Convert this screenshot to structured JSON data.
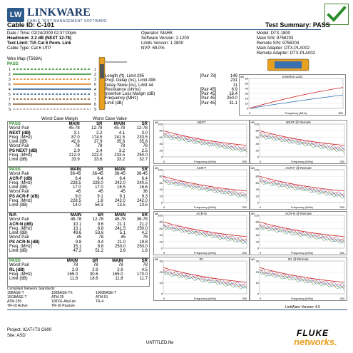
{
  "header": {
    "logo_icon": "LW",
    "logo_title": "LINKWARE",
    "logo_subtitle": "CABLE TEST MANAGEMENT SOFTWARE",
    "status_icon": "check-icon"
  },
  "title_bar": {
    "cable_id": "Cable ID: C-101",
    "summary": "Test Summary: PASS"
  },
  "meta": {
    "left": [
      "Date / Time: 02/24/2009 02:37:00pm",
      "Headroom: 2.2 dB (NEXT 12-78)",
      "Test Limit: TIA Cat 6 Perm. Link",
      "Cable Type: Cat 6 UTP"
    ],
    "mid": [
      "Operator: MARK",
      "Software Version: 2.1200",
      "Limits Version: 1.2800",
      "NVP: 69.0%"
    ],
    "right": [
      "Model: DTX-1800",
      "Main S/N: 9758203",
      "Remote S/N: 9758204",
      "Main Adapter: DTX-PLA002",
      "Remote Adapter: DTX-PLA002"
    ]
  },
  "wiremap": {
    "title": "Wire Map (T568A)",
    "status": "PASS",
    "pins": [
      "1",
      "2",
      "3",
      "6",
      "4",
      "5",
      "7",
      "8",
      "S"
    ]
  },
  "summary_rows": [
    {
      "label": "Length (ft), Limit 295",
      "pair": "[Pair 78]",
      "value": "149"
    },
    {
      "label": "Prop. Delay (ns), Limit 498",
      "pair": "",
      "value": "231"
    },
    {
      "label": "Delay Skew (ns), Limit 44",
      "pair": "",
      "value": "11"
    },
    {
      "label": "Resistance (ohms)",
      "pair": "[Pair 45]",
      "value": "6.9"
    },
    {
      "label": "",
      "pair": "",
      "value": ""
    },
    {
      "label": "Insertion Loss Margin (dB)",
      "pair": "[Pair 45]",
      "value": "16.4"
    },
    {
      "label": "Frequency (MHz)",
      "pair": "[Pair 45]",
      "value": "250.0"
    },
    {
      "label": "Limit (dB)",
      "pair": "[Pair 45]",
      "value": "31.1"
    }
  ],
  "margin_header": {
    "worst_margin": "Worst Case Margin",
    "worst_value": "Worst Case Value"
  },
  "sections": [
    {
      "status": "PASS",
      "rows": [
        [
          "",
          "MAIN",
          "SR",
          "MAIN",
          "SR"
        ],
        [
          "Worst Pair",
          "45-78",
          "12-78",
          "45-78",
          "12-78"
        ],
        [
          "NEXT (dB)",
          "3.1",
          "2.2",
          "4.1",
          "3.0"
        ],
        [
          "Freq. (MHz)",
          "87.0",
          "174.5",
          "241.5",
          "233.5"
        ],
        [
          "Limit (dB)",
          "42.8",
          "37.9",
          "35.6",
          "35.8"
        ],
        [
          "Worst Pair",
          "78",
          "78",
          "78",
          "78"
        ],
        [
          "PS NEXT (dB)",
          "2.9",
          "2.4",
          "3.2",
          "2.5"
        ],
        [
          "Freq. (MHz)",
          "212.0",
          "222.0",
          "233.5",
          "250.0"
        ],
        [
          "Limit (dB)",
          "33.9",
          "33.6",
          "33.2",
          "32.7"
        ]
      ]
    },
    {
      "status": "PASS",
      "rows": [
        [
          "",
          "MAIN",
          "SR",
          "MAIN",
          "SR"
        ],
        [
          "Worst Pair",
          "36-45",
          "36-45",
          "36-45",
          "36-45"
        ],
        [
          "ACR-F (dB)",
          "6.4",
          "6.4",
          "6.4",
          "6.4"
        ],
        [
          "Freq. (MHz)",
          "228.5",
          "228.0",
          "242.0",
          "240.5"
        ],
        [
          "Limit (dB)",
          "17.0",
          "17.0",
          "16.5",
          "16.6"
        ],
        [
          "Worst Pair",
          "45",
          "45",
          "45",
          "36"
        ],
        [
          "PS ACR-F (dB)",
          "9.0",
          "9.1",
          "9.1",
          "9.3"
        ],
        [
          "Freq. (MHz)",
          "228.5",
          "1.8",
          "242.0",
          "242.0"
        ],
        [
          "Limit (dB)",
          "14.0",
          "56.3",
          "13.5",
          "13.5"
        ]
      ]
    },
    {
      "status": "N/A",
      "rows": [
        [
          "",
          "MAIN",
          "SR",
          "MAIN",
          "SR"
        ],
        [
          "Worst Pair",
          "45-78",
          "12-78",
          "45-78",
          "36-78"
        ],
        [
          "ACR-N (dB)",
          "10.1",
          "9.6",
          "21.1",
          "21.2"
        ],
        [
          "Freq. (MHz)",
          "13.1",
          "8.8",
          "241.5",
          "250.0"
        ],
        [
          "Limit (dB)",
          "49.6",
          "53.6",
          "5.1",
          "4.2"
        ],
        [
          "Worst Pair",
          "45",
          "78",
          "45",
          "78"
        ],
        [
          "PS ACR-N (dB)",
          "9.8",
          "9.4",
          "21.0",
          "19.8"
        ],
        [
          "Freq. (MHz)",
          "15.1",
          "8.8",
          "250.0",
          "250.0"
        ],
        [
          "Limit (dB)",
          "47.2",
          "51.2",
          "2.6",
          "1.6"
        ]
      ]
    },
    {
      "status": "PASS",
      "rows": [
        [
          "",
          "MAIN",
          "SR",
          "MAIN",
          "SR"
        ],
        [
          "Worst Pair",
          "78",
          "78",
          "78",
          "78"
        ],
        [
          "RL (dB)",
          "2.9",
          "2.9",
          "2.9",
          "4.5"
        ],
        [
          "Freq. (MHz)",
          "165.0",
          "30.6",
          "165.0",
          "170.0"
        ],
        [
          "Limit (dB)",
          "11.8",
          "18.6",
          "11.8",
          "11.7"
        ]
      ]
    }
  ],
  "standards": {
    "title": "Compliant Network Standards:",
    "items": [
      "10BASE-T",
      "100BASE-TX",
      "1000BASE-T",
      "10GBASE-T",
      "ATM-25",
      "ATM-51",
      "ATM-155",
      "100VG-AnyLan",
      "TR-4",
      "TR-16 Active",
      "TR-16 Passive"
    ]
  },
  "graphs": [
    {
      "title": "Insertion Loss",
      "ylabels": [
        "60",
        "50",
        "40",
        "30",
        "20",
        "10",
        "0"
      ],
      "x": "Frequency (MHz)",
      "xmax": "250"
    },
    {
      "title": "NEXT",
      "ylabels": [
        "100",
        "80",
        "60",
        "40",
        "20",
        "0"
      ],
      "x": "Frequency (MHz)",
      "xmax": "250"
    },
    {
      "title": "NEXT @ Remote",
      "ylabels": [
        "100",
        "80",
        "60",
        "40",
        "20",
        "0"
      ],
      "x": "Frequency (MHz)",
      "xmax": "250"
    },
    {
      "title": "ACR-F",
      "ylabels": [
        "100",
        "80",
        "60",
        "40",
        "20",
        "0"
      ],
      "x": "Frequency (MHz)",
      "xmax": "250"
    },
    {
      "title": "ACR-F @ Remote",
      "ylabels": [
        "100",
        "80",
        "60",
        "40",
        "20",
        "0"
      ],
      "x": "Frequency (MHz)",
      "xmax": "250"
    },
    {
      "title": "ACR-N",
      "ylabels": [
        "100",
        "80",
        "60",
        "40",
        "20",
        "0"
      ],
      "x": "Frequency (MHz)",
      "xmax": "250"
    },
    {
      "title": "ACR-N @ Remote",
      "ylabels": [
        "100",
        "80",
        "60",
        "40",
        "20",
        "0"
      ],
      "x": "Frequency (MHz)",
      "xmax": "250"
    },
    {
      "title": "RL",
      "ylabels": [
        "30",
        "20",
        "10",
        "0"
      ],
      "x": "Frequency (MHz)",
      "xmax": "250"
    },
    {
      "title": "RL @ Remote",
      "ylabels": [
        "30",
        "20",
        "10",
        "0"
      ],
      "x": "Frequency (MHz)",
      "xmax": "250"
    }
  ],
  "footer": {
    "version": "LinkWare Version: 4.0",
    "project": "Project: ICAT-ITS C600",
    "site": "Site: ASD",
    "filename": "UNTITLED.flw",
    "brand_top": "FLUKE",
    "brand_bottom": "networks."
  },
  "colors": {
    "brand_blue": "#2d5a8c",
    "pass_green": "#2a8c2a",
    "limit_red": "#cc2222"
  }
}
